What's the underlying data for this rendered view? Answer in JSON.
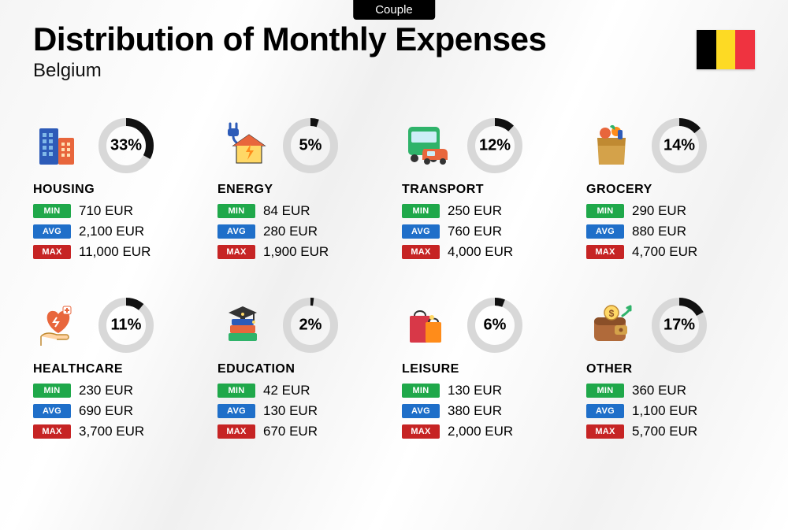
{
  "tab_label": "Couple",
  "title": "Distribution of Monthly Expenses",
  "subtitle": "Belgium",
  "flag_colors": [
    "#000000",
    "#fdda24",
    "#ef3340"
  ],
  "donut": {
    "radius": 30,
    "stroke_width": 10,
    "track_color": "#d8d8d8",
    "fill_color": "#111111"
  },
  "badge_labels": {
    "min": "MIN",
    "avg": "AVG",
    "max": "MAX"
  },
  "badge_colors": {
    "min": "#1fa84a",
    "avg": "#1f6fc9",
    "max": "#c62424"
  },
  "currency_suffix": " EUR",
  "categories": [
    {
      "key": "housing",
      "name": "HOUSING",
      "pct": 33,
      "pct_label": "33%",
      "min": "710",
      "avg": "2,100",
      "max": "11,000",
      "icon": "buildings"
    },
    {
      "key": "energy",
      "name": "ENERGY",
      "pct": 5,
      "pct_label": "5%",
      "min": "84",
      "avg": "280",
      "max": "1,900",
      "icon": "energy-house"
    },
    {
      "key": "transport",
      "name": "TRANSPORT",
      "pct": 12,
      "pct_label": "12%",
      "min": "250",
      "avg": "760",
      "max": "4,000",
      "icon": "bus-car"
    },
    {
      "key": "grocery",
      "name": "GROCERY",
      "pct": 14,
      "pct_label": "14%",
      "min": "290",
      "avg": "880",
      "max": "4,700",
      "icon": "grocery-bag"
    },
    {
      "key": "healthcare",
      "name": "HEALTHCARE",
      "pct": 11,
      "pct_label": "11%",
      "min": "230",
      "avg": "690",
      "max": "3,700",
      "icon": "heart-hand"
    },
    {
      "key": "education",
      "name": "EDUCATION",
      "pct": 2,
      "pct_label": "2%",
      "min": "42",
      "avg": "130",
      "max": "670",
      "icon": "grad-books"
    },
    {
      "key": "leisure",
      "name": "LEISURE",
      "pct": 6,
      "pct_label": "6%",
      "min": "130",
      "avg": "380",
      "max": "2,000",
      "icon": "shopping-bags"
    },
    {
      "key": "other",
      "name": "OTHER",
      "pct": 17,
      "pct_label": "17%",
      "min": "360",
      "avg": "1,100",
      "max": "5,700",
      "icon": "wallet-arrow"
    }
  ]
}
